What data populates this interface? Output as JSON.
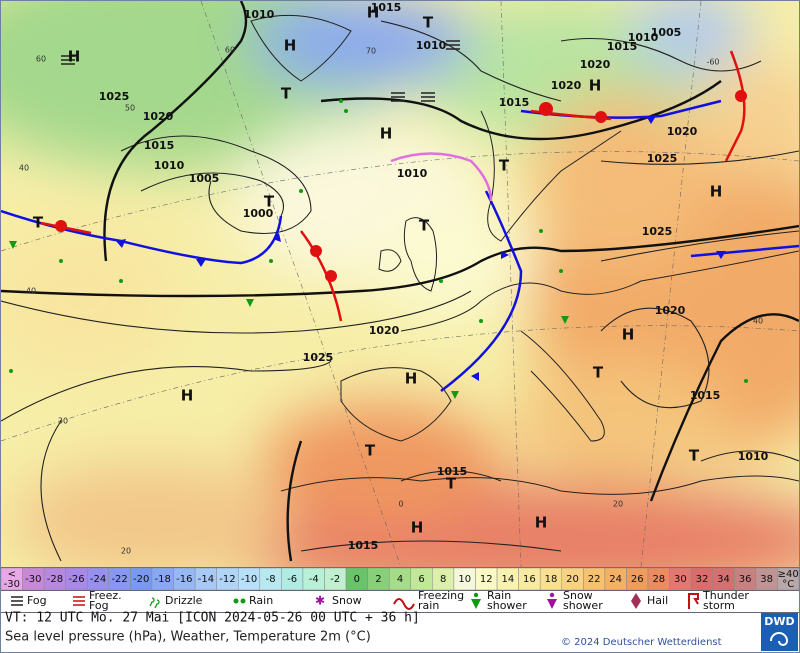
{
  "map": {
    "pressure_labels": [
      "1010",
      "1015",
      "1010",
      "1025",
      "1020",
      "1015",
      "1010",
      "1005",
      "1000",
      "1010",
      "1015",
      "1020",
      "1020",
      "1015",
      "1005",
      "1010",
      "1020",
      "1025",
      "1025",
      "1020",
      "1020",
      "1025",
      "1015",
      "1010",
      "1015",
      "1015"
    ],
    "centers": [
      "H",
      "H",
      "T",
      "H",
      "H",
      "T",
      "T",
      "T",
      "H",
      "T",
      "H",
      "H",
      "H",
      "T",
      "T",
      "H",
      "H",
      "T",
      "T",
      "T",
      "H"
    ],
    "temp_labels": [
      "60",
      "60",
      "70",
      "50",
      "40",
      "40",
      "30",
      "20",
      "40",
      "0",
      "20",
      "-60"
    ]
  },
  "legend": {
    "scale": {
      "cells": [
        {
          "label": [
            "<",
            "-30"
          ],
          "color": "#e8a8e8"
        },
        {
          "label": [
            "-30"
          ],
          "color": "#c888d8"
        },
        {
          "label": [
            "-28"
          ],
          "color": "#b888e0"
        },
        {
          "label": [
            "-26"
          ],
          "color": "#a888e8"
        },
        {
          "label": [
            "-24"
          ],
          "color": "#9890ee"
        },
        {
          "label": [
            "-22"
          ],
          "color": "#8898f2"
        },
        {
          "label": [
            "-20"
          ],
          "color": "#7898f2"
        },
        {
          "label": [
            "-18"
          ],
          "color": "#88a8f4"
        },
        {
          "label": [
            "-16"
          ],
          "color": "#98b8f4"
        },
        {
          "label": [
            "-14"
          ],
          "color": "#a8c8f6"
        },
        {
          "label": [
            "-12"
          ],
          "color": "#b0d4f8"
        },
        {
          "label": [
            "-10"
          ],
          "color": "#b8e0f8"
        },
        {
          "label": [
            "-8"
          ],
          "color": "#b8e8f0"
        },
        {
          "label": [
            "-6"
          ],
          "color": "#b0ece4"
        },
        {
          "label": [
            "-4"
          ],
          "color": "#b8f0d8"
        },
        {
          "label": [
            "-2"
          ],
          "color": "#c0f0d0"
        },
        {
          "label": [
            "0"
          ],
          "color": "#68c468"
        },
        {
          "label": [
            "2"
          ],
          "color": "#88d078"
        },
        {
          "label": [
            "4"
          ],
          "color": "#a4dc88"
        },
        {
          "label": [
            "6"
          ],
          "color": "#c0e898"
        },
        {
          "label": [
            "8"
          ],
          "color": "#dcf0ac"
        },
        {
          "label": [
            "10"
          ],
          "color": "#f6f8dc"
        },
        {
          "label": [
            "12"
          ],
          "color": "#fbfac4"
        },
        {
          "label": [
            "14"
          ],
          "color": "#f8f2b0"
        },
        {
          "label": [
            "16"
          ],
          "color": "#f8eaa0"
        },
        {
          "label": [
            "18"
          ],
          "color": "#f8e090"
        },
        {
          "label": [
            "20"
          ],
          "color": "#f8d282"
        },
        {
          "label": [
            "22"
          ],
          "color": "#f6c272"
        },
        {
          "label": [
            "24"
          ],
          "color": "#f4b064"
        },
        {
          "label": [
            "26"
          ],
          "color": "#f09c5c"
        },
        {
          "label": [
            "28"
          ],
          "color": "#ec8a60"
        },
        {
          "label": [
            "30"
          ],
          "color": "#e47870"
        },
        {
          "label": [
            "32"
          ],
          "color": "#dc6c6c"
        },
        {
          "label": [
            "34"
          ],
          "color": "#d47070"
        },
        {
          "label": [
            "36"
          ],
          "color": "#c88080"
        },
        {
          "label": [
            "38"
          ],
          "color": "#c09494"
        },
        {
          "label": [
            "≥40",
            "°C"
          ],
          "color": "#b8a8a8"
        }
      ]
    },
    "items": [
      {
        "lines": [
          "Fog"
        ]
      },
      {
        "lines": [
          "Freez.",
          "Fog"
        ]
      },
      {
        "lines": [
          "Drizzle"
        ]
      },
      {
        "lines": [
          "Rain"
        ]
      },
      {
        "lines": [
          "Snow"
        ]
      },
      {
        "lines": [
          "Freezing",
          "rain"
        ]
      },
      {
        "lines": [
          "Rain",
          "shower"
        ]
      },
      {
        "lines": [
          "Snow",
          "shower"
        ]
      },
      {
        "lines": [
          "Hail"
        ]
      },
      {
        "lines": [
          "Thunder",
          "storm"
        ]
      }
    ]
  },
  "footer": {
    "valid_time": "VT: 12 UTC Mo.  27 Mai [ICON 2024-05-26  00 UTC + 36 h]",
    "description": "Sea level pressure (hPa), Weather, Temperature 2m (°C)",
    "copyright": "© 2024 Deutscher Wetterdienst",
    "logo": "DWD"
  }
}
